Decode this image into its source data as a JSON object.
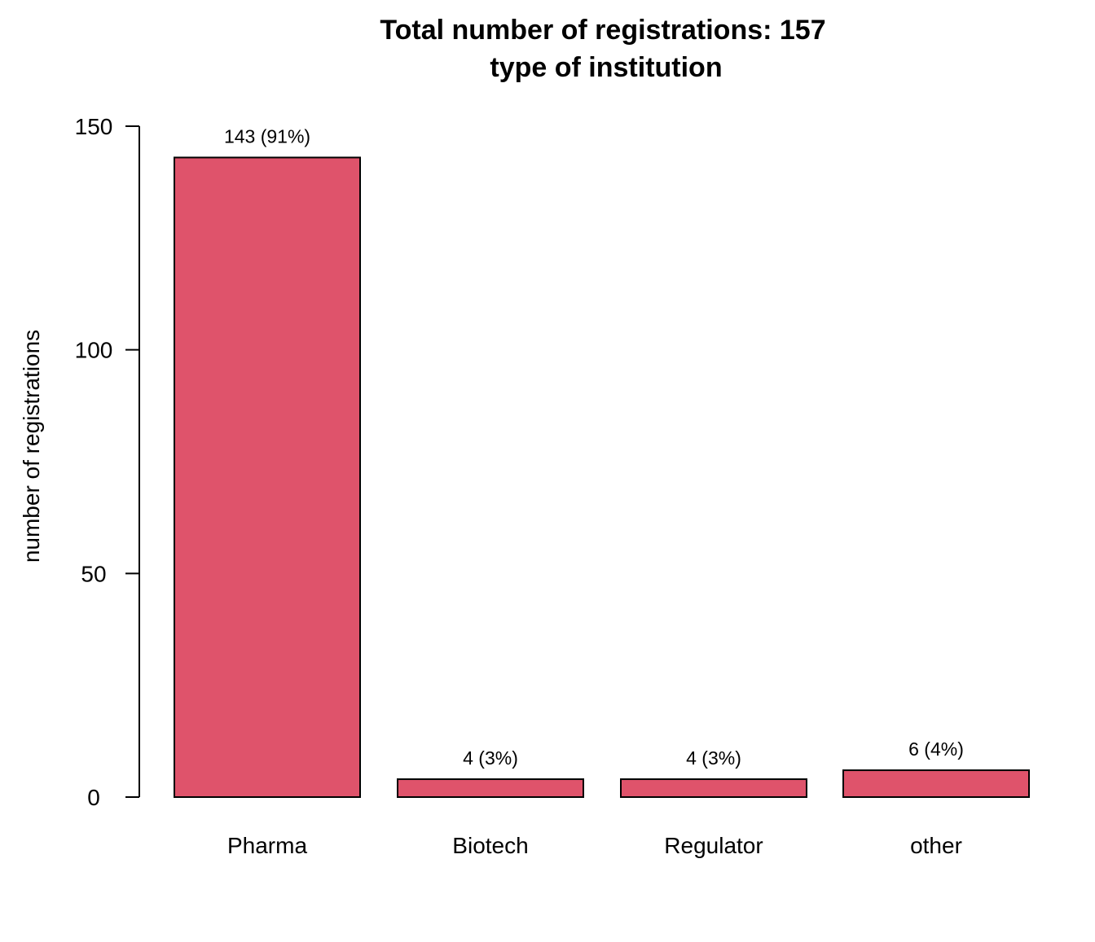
{
  "chart_data": {
    "type": "bar",
    "title": "Total number of registrations: 157",
    "subtitle": "type of institution",
    "xlabel": "",
    "ylabel": "number of registrations",
    "categories": [
      "Pharma",
      "Biotech",
      "Regulator",
      "other"
    ],
    "values": [
      143,
      4,
      4,
      6
    ],
    "data_labels": [
      "143 (91%)",
      "4 (3%)",
      "4 (3%)",
      "6 (4%)"
    ],
    "ylim": [
      0,
      150
    ],
    "yticks": [
      0,
      50,
      100,
      150
    ],
    "ytick_labels": [
      "0",
      "50",
      "100",
      "150"
    ],
    "grid": false,
    "legend": "none",
    "colors": {
      "bar_fill": "#DF536B",
      "bar_stroke": "#000000",
      "axis": "#000000"
    }
  }
}
